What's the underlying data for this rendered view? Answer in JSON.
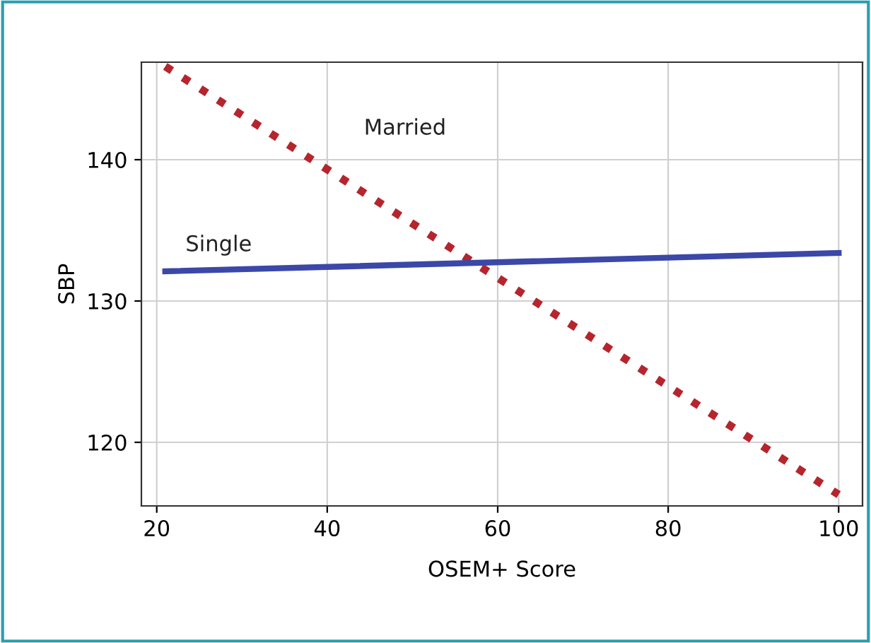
{
  "chart_data": {
    "type": "line",
    "xlabel": "OSEM+ Score",
    "ylabel": "SBP",
    "x": [
      21,
      100
    ],
    "series": [
      {
        "name": "Married",
        "color": "#b5252e",
        "values": [
          146.6,
          116.3
        ],
        "line_style": "dotted"
      },
      {
        "name": "Single",
        "color": "#3b48a8",
        "values": [
          132.1,
          133.4
        ],
        "line_style": "solid"
      }
    ],
    "xlim": [
      18.2,
      102.8
    ],
    "ylim": [
      115.5,
      146.9
    ],
    "xticks": [
      20,
      40,
      60,
      80,
      100
    ],
    "yticks": [
      120,
      130,
      140
    ],
    "grid": true,
    "legend": false,
    "marker": "none"
  }
}
